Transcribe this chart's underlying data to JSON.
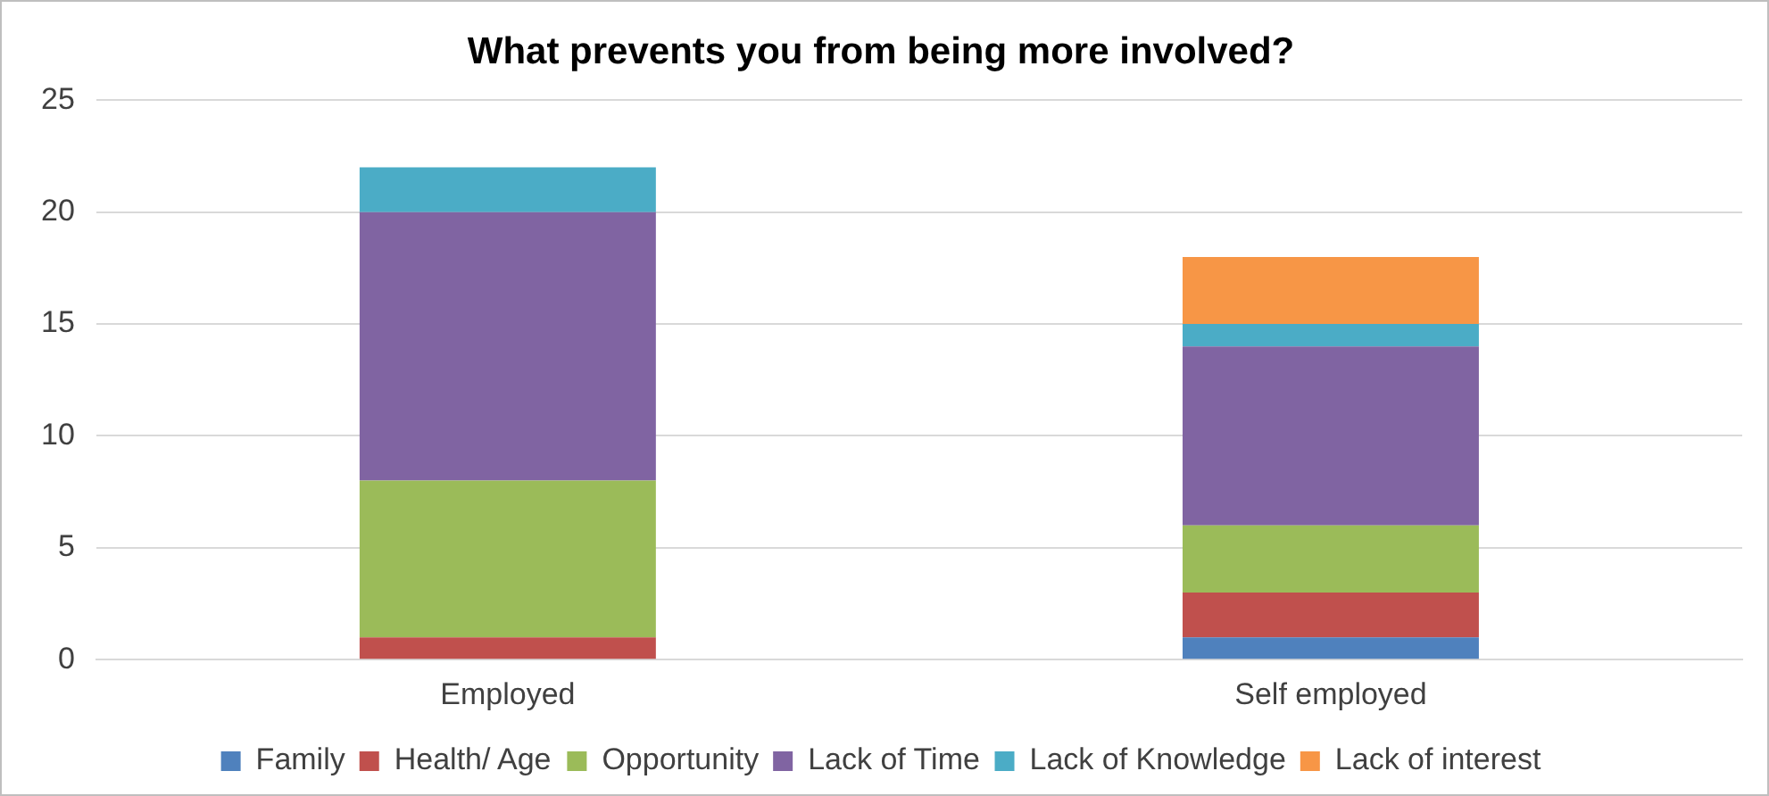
{
  "chart_data": {
    "type": "bar",
    "title": "What prevents you from being more involved?",
    "categories": [
      "Employed",
      "Self employed"
    ],
    "stacked": true,
    "series": [
      {
        "name": "Family",
        "color": "#4f81bd",
        "values": [
          0,
          1
        ]
      },
      {
        "name": "Health/ Age",
        "color": "#c0504d",
        "values": [
          1,
          2
        ]
      },
      {
        "name": "Opportunity",
        "color": "#9bbb59",
        "values": [
          7,
          3
        ]
      },
      {
        "name": "Lack of Time",
        "color": "#8064a2",
        "values": [
          12,
          8
        ]
      },
      {
        "name": "Lack of Knowledge",
        "color": "#4bacc6",
        "values": [
          2,
          1
        ]
      },
      {
        "name": "Lack of interest",
        "color": "#f79646",
        "values": [
          0,
          3
        ]
      }
    ],
    "ylim": [
      0,
      25
    ],
    "yticks": [
      0,
      5,
      10,
      15,
      20,
      25
    ],
    "grid": "y",
    "legend": "bottom"
  }
}
